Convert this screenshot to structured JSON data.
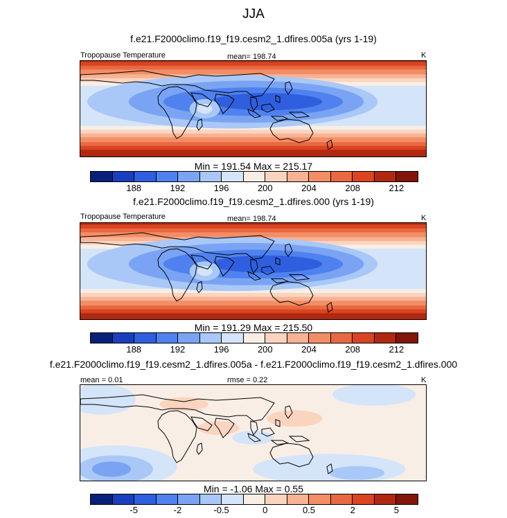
{
  "figure": {
    "season": "JJA"
  },
  "colors": {
    "temperature_scale": [
      "#08207a",
      "#1a3fbe",
      "#2f5fde",
      "#4f82ee",
      "#7aa4f3",
      "#a9c8f7",
      "#d4e4f9",
      "#f8eee5",
      "#fbd4c0",
      "#f7b393",
      "#f28e66",
      "#ea6841",
      "#d94521",
      "#b12810",
      "#821409"
    ],
    "difference_scale": [
      "#08207a",
      "#1a3fbe",
      "#2f5fde",
      "#4f82ee",
      "#7aa4f3",
      "#a9c8f7",
      "#d4e4f9",
      "#f8eee5",
      "#fbd4c0",
      "#f7b393",
      "#f28e66",
      "#ea6841",
      "#d94521",
      "#b12810",
      "#821409"
    ]
  },
  "panels": [
    {
      "title": "f.e21.F2000climo.f19_f19.cesm2_1.dfires.005a (yrs 1-19)",
      "left_label": "Tropopause Temperature",
      "center_label": "mean= 198.74",
      "right_label": "K",
      "minmax": "Min = 191.54 Max = 215.17",
      "colorbar_ticks": [
        "188",
        "192",
        "196",
        "200",
        "204",
        "208",
        "212"
      ]
    },
    {
      "title": "f.e21.F2000climo.f19_f19.cesm2_1.dfires.000 (yrs 1-19)",
      "left_label": "Tropopause Temperature",
      "center_label": "mean= 198.74",
      "right_label": "K",
      "minmax": "Min = 191.29 Max = 215.50",
      "colorbar_ticks": [
        "188",
        "192",
        "196",
        "200",
        "204",
        "208",
        "212"
      ]
    },
    {
      "title": "f.e21.F2000climo.f19_f19.cesm2_1.dfires.005a - f.e21.F2000climo.f19_f19.cesm2_1.dfires.000",
      "left_label": "mean =   0.01",
      "center_label": "rmse =   0.22",
      "right_label": "K",
      "minmax": "Min =  -1.06 Max =   0.55",
      "colorbar_ticks": [
        "-5",
        "-2",
        "-0.5",
        "0",
        "0.5",
        "2",
        "5"
      ]
    }
  ],
  "chart_data": [
    {
      "type": "heatmap",
      "title": "f.e21.F2000climo.f19_f19.cesm2_1.dfires.005a (yrs 1-19)",
      "variable": "Tropopause Temperature",
      "units": "K",
      "season": "JJA",
      "mean": 198.74,
      "min": 191.54,
      "max": 215.17,
      "contour_levels": [
        186,
        188,
        190,
        192,
        194,
        196,
        198,
        200,
        202,
        204,
        206,
        208,
        210,
        212,
        214
      ],
      "colorbar_ticks": [
        188,
        192,
        196,
        200,
        204,
        208,
        212
      ]
    },
    {
      "type": "heatmap",
      "title": "f.e21.F2000climo.f19_f19.cesm2_1.dfires.000 (yrs 1-19)",
      "variable": "Tropopause Temperature",
      "units": "K",
      "season": "JJA",
      "mean": 198.74,
      "min": 191.29,
      "max": 215.5,
      "contour_levels": [
        186,
        188,
        190,
        192,
        194,
        196,
        198,
        200,
        202,
        204,
        206,
        208,
        210,
        212,
        214
      ],
      "colorbar_ticks": [
        188,
        192,
        196,
        200,
        204,
        208,
        212
      ]
    },
    {
      "type": "heatmap",
      "title": "f.e21.F2000climo.f19_f19.cesm2_1.dfires.005a - f.e21.F2000climo.f19_f19.cesm2_1.dfires.000",
      "units": "K",
      "season": "JJA",
      "mean": 0.01,
      "rmse": 0.22,
      "min": -1.06,
      "max": 0.55,
      "contour_levels": [
        -8,
        -5,
        -4,
        -2,
        -1,
        -0.5,
        -0.25,
        0,
        0.25,
        0.5,
        1,
        2,
        4,
        5,
        8
      ],
      "colorbar_ticks": [
        -5,
        -2,
        -0.5,
        0,
        0.5,
        2,
        5
      ]
    }
  ]
}
